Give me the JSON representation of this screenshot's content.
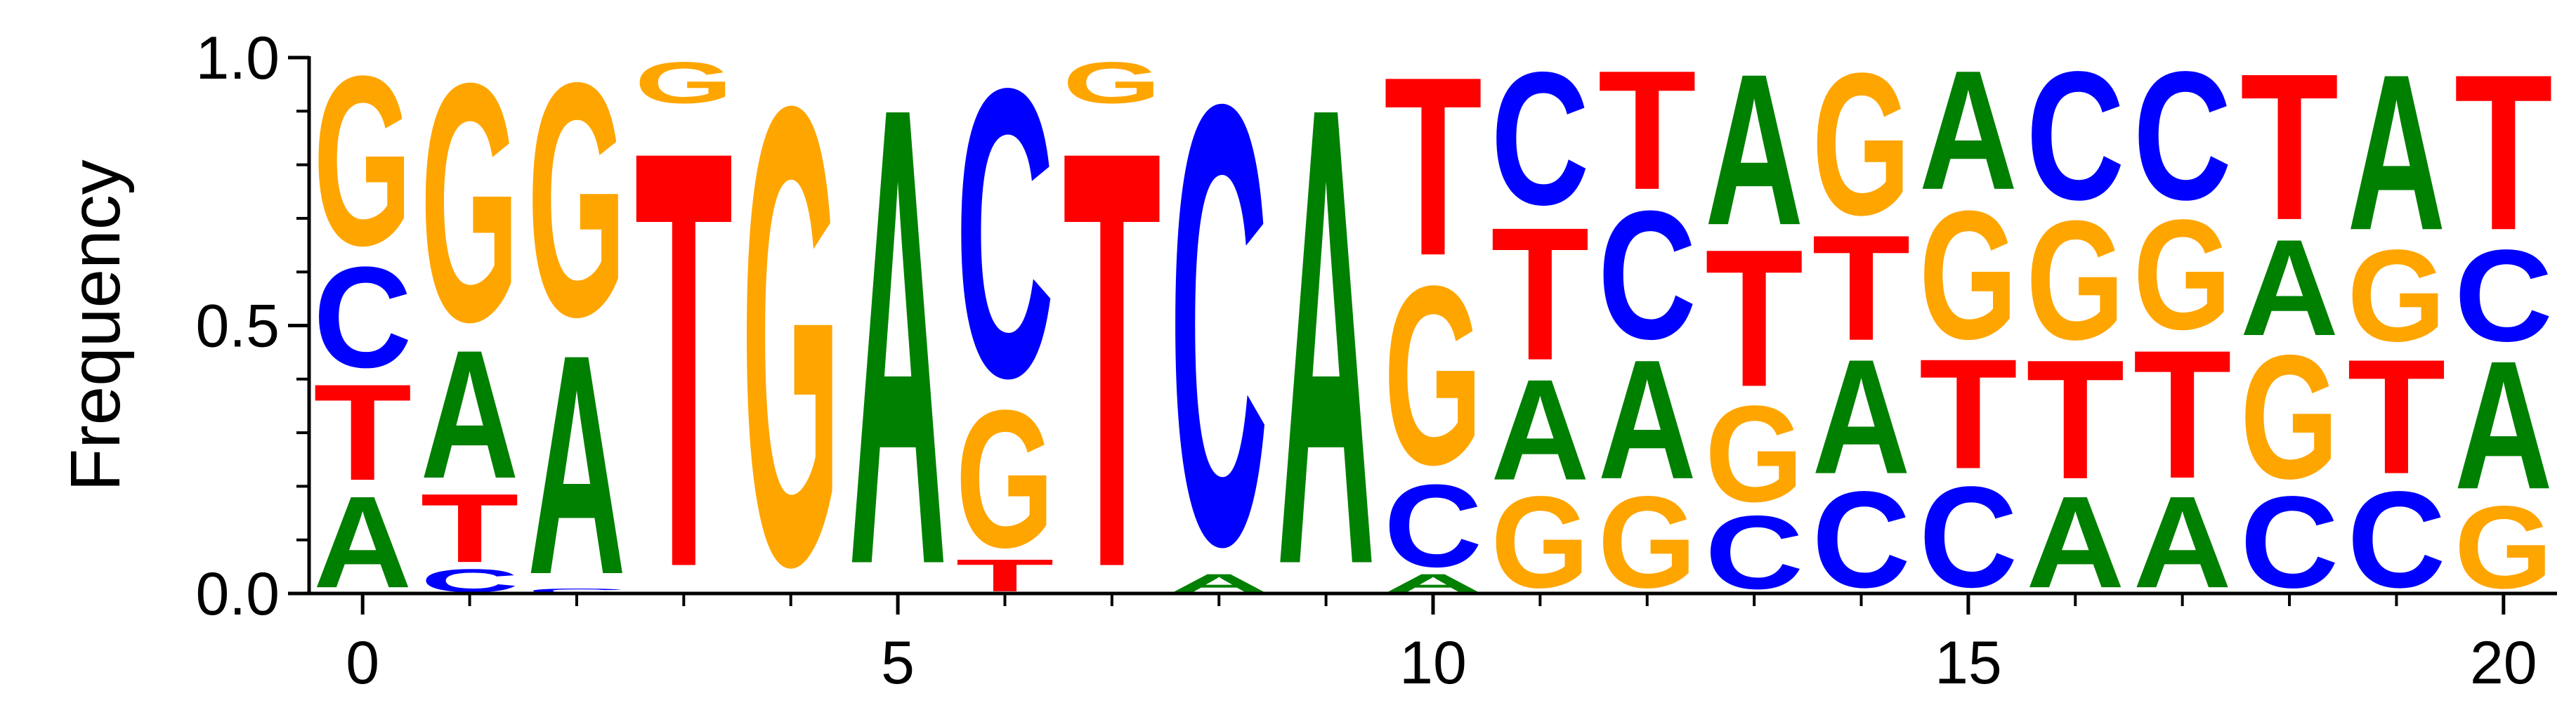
{
  "chart_data": {
    "type": "sequence_logo",
    "ylabel": "Frequency",
    "xlabel": "",
    "xlim": [
      -0.5,
      20.5
    ],
    "ylim": [
      0,
      1.0
    ],
    "x_ticks": [
      0,
      5,
      10,
      15,
      20
    ],
    "y_ticks": [
      0.0,
      0.5,
      1.0
    ],
    "y_tick_labels": [
      "0.0",
      "0.5",
      "1.0"
    ],
    "x_tick_labels": [
      "0",
      "5",
      "10",
      "15",
      "20"
    ],
    "colors": {
      "A": "#008000",
      "C": "#0000ff",
      "G": "#ffa500",
      "T": "#ff0000"
    },
    "positions": [
      {
        "x": 0,
        "stack": [
          [
            "A",
            0.2
          ],
          [
            "T",
            0.21
          ],
          [
            "C",
            0.22
          ],
          [
            "G",
            0.37
          ]
        ]
      },
      {
        "x": 1,
        "stack": [
          [
            "C",
            0.05
          ],
          [
            "T",
            0.15
          ],
          [
            "A",
            0.28
          ],
          [
            "G",
            0.52
          ]
        ]
      },
      {
        "x": 2,
        "stack": [
          [
            "C",
            0.01
          ],
          [
            "A",
            0.48
          ],
          [
            "G",
            0.51
          ]
        ]
      },
      {
        "x": 3,
        "stack": [
          [
            "T",
            0.91
          ],
          [
            "G",
            0.09
          ]
        ]
      },
      {
        "x": 4,
        "stack": [
          [
            "G",
            1.0
          ]
        ]
      },
      {
        "x": 5,
        "stack": [
          [
            "A",
            1.0
          ]
        ]
      },
      {
        "x": 6,
        "stack": [
          [
            "T",
            0.07
          ],
          [
            "G",
            0.3
          ],
          [
            "C",
            0.63
          ]
        ]
      },
      {
        "x": 7,
        "stack": [
          [
            "T",
            0.91
          ],
          [
            "G",
            0.09
          ]
        ]
      },
      {
        "x": 8,
        "stack": [
          [
            "A",
            0.04
          ],
          [
            "C",
            0.96
          ]
        ]
      },
      {
        "x": 9,
        "stack": [
          [
            "A",
            1.0
          ]
        ]
      },
      {
        "x": 10,
        "stack": [
          [
            "A",
            0.04
          ],
          [
            "C",
            0.18
          ],
          [
            "G",
            0.39
          ],
          [
            "T",
            0.39
          ]
        ]
      },
      {
        "x": 11,
        "stack": [
          [
            "G",
            0.2
          ],
          [
            "A",
            0.22
          ],
          [
            "T",
            0.29
          ],
          [
            "C",
            0.29
          ]
        ]
      },
      {
        "x": 12,
        "stack": [
          [
            "G",
            0.2
          ],
          [
            "A",
            0.26
          ],
          [
            "C",
            0.28
          ],
          [
            "T",
            0.26
          ]
        ]
      },
      {
        "x": 13,
        "stack": [
          [
            "C",
            0.16
          ],
          [
            "G",
            0.21
          ],
          [
            "T",
            0.3
          ],
          [
            "A",
            0.33
          ]
        ]
      },
      {
        "x": 14,
        "stack": [
          [
            "C",
            0.21
          ],
          [
            "A",
            0.25
          ],
          [
            "T",
            0.23
          ],
          [
            "G",
            0.31
          ]
        ]
      },
      {
        "x": 15,
        "stack": [
          [
            "C",
            0.22
          ],
          [
            "T",
            0.24
          ],
          [
            "G",
            0.28
          ],
          [
            "A",
            0.26
          ]
        ]
      },
      {
        "x": 16,
        "stack": [
          [
            "A",
            0.2
          ],
          [
            "T",
            0.26
          ],
          [
            "G",
            0.26
          ],
          [
            "C",
            0.28
          ]
        ]
      },
      {
        "x": 17,
        "stack": [
          [
            "A",
            0.2
          ],
          [
            "T",
            0.28
          ],
          [
            "G",
            0.24
          ],
          [
            "C",
            0.28
          ]
        ]
      },
      {
        "x": 18,
        "stack": [
          [
            "C",
            0.2
          ],
          [
            "G",
            0.27
          ],
          [
            "A",
            0.21
          ],
          [
            "T",
            0.32
          ]
        ]
      },
      {
        "x": 19,
        "stack": [
          [
            "C",
            0.21
          ],
          [
            "T",
            0.25
          ],
          [
            "G",
            0.2
          ],
          [
            "A",
            0.34
          ]
        ]
      },
      {
        "x": 20,
        "stack": [
          [
            "G",
            0.18
          ],
          [
            "A",
            0.28
          ],
          [
            "C",
            0.2
          ],
          [
            "T",
            0.34
          ]
        ]
      }
    ]
  }
}
